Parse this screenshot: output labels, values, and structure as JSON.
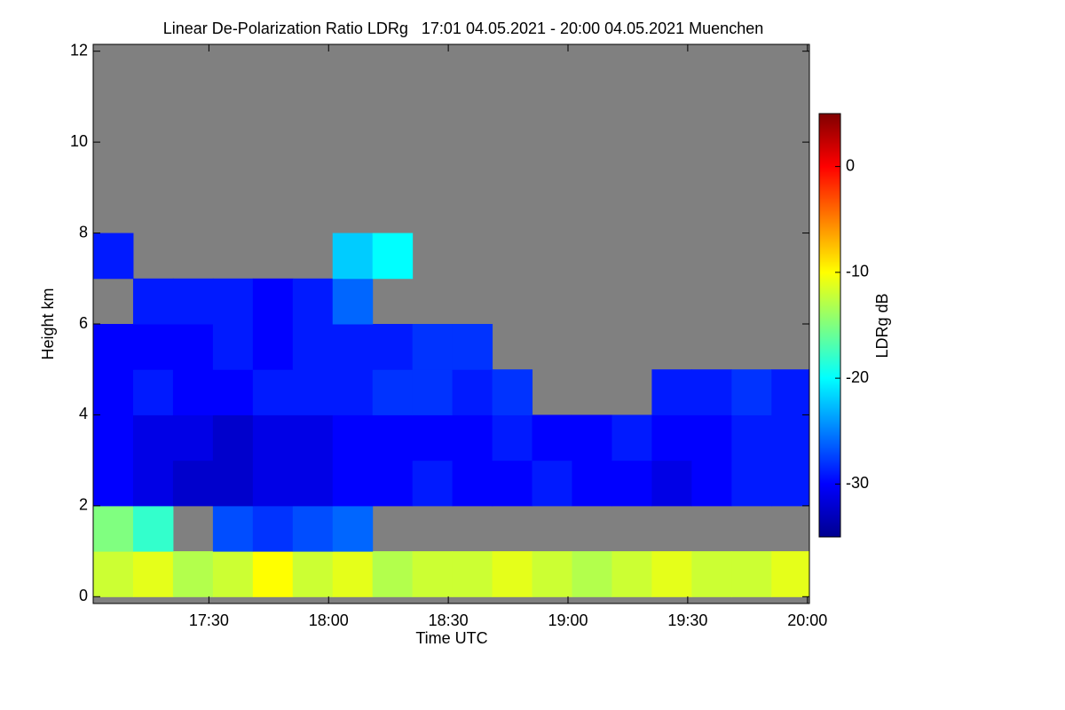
{
  "chart_data": {
    "type": "heatmap",
    "title": "Linear De-Polarization Ratio LDRg   17:01 04.05.2021 - 20:00 04.05.2021 Muenchen",
    "xlabel": "Time UTC",
    "ylabel": "Height km",
    "colorbar_label": "LDRg dB",
    "xlim": [
      1021,
      1200.5
    ],
    "xticks": [
      {
        "value": 1050,
        "label": "17:30"
      },
      {
        "value": 1080,
        "label": "18:00"
      },
      {
        "value": 1110,
        "label": "18:30"
      },
      {
        "value": 1140,
        "label": "19:00"
      },
      {
        "value": 1170,
        "label": "19:30"
      },
      {
        "value": 1200,
        "label": "20:00"
      }
    ],
    "ylim": [
      -0.15,
      12.15
    ],
    "yticks": [
      0,
      2,
      4,
      6,
      8,
      10,
      12
    ],
    "clim": [
      -35,
      5
    ],
    "cticks": [
      0,
      -10,
      -20,
      -30
    ],
    "colormap": "jet",
    "missing_color": "#808080",
    "xbins": [
      1021,
      1031,
      1041,
      1051,
      1061,
      1071,
      1081,
      1091,
      1101,
      1111,
      1121,
      1131,
      1141,
      1151,
      1161,
      1171,
      1181,
      1191,
      1200.5
    ],
    "ybins": [
      0,
      1,
      2,
      3,
      4,
      5,
      6,
      7,
      8,
      9,
      10,
      11,
      12
    ],
    "z": [
      [
        -12,
        -11,
        -13,
        -12,
        -10,
        -12,
        -11,
        -13,
        -12,
        -12,
        -11,
        -12,
        -13,
        -12,
        -11,
        -12,
        -12,
        -11
      ],
      [
        -15,
        -18,
        null,
        -27,
        -28,
        -27,
        -26,
        null,
        null,
        null,
        null,
        null,
        null,
        null,
        null,
        null,
        null,
        null
      ],
      [
        -30,
        -31,
        -32,
        -32,
        -31,
        -31,
        -30,
        -30,
        -29,
        -30,
        -30,
        -29,
        -30,
        -30,
        -31,
        -30,
        -29,
        -29
      ],
      [
        -30,
        -31,
        -31,
        -32,
        -31,
        -31,
        -30,
        -30,
        -30,
        -30,
        -29,
        -30,
        -30,
        -29,
        -30,
        -30,
        -29,
        -29
      ],
      [
        -30,
        -29,
        -30,
        -30,
        -29,
        -29,
        -29,
        -28,
        -28,
        -29,
        -28,
        null,
        null,
        null,
        -29,
        -29,
        -28,
        -29
      ],
      [
        -30,
        -30,
        -30,
        -29,
        -30,
        -29,
        -29,
        -29,
        -28,
        -28,
        null,
        null,
        null,
        null,
        null,
        null,
        null,
        null
      ],
      [
        null,
        -29,
        -29,
        -29,
        -30,
        -29,
        -26,
        null,
        null,
        null,
        null,
        null,
        null,
        null,
        null,
        null,
        null,
        null
      ],
      [
        -29,
        null,
        null,
        null,
        null,
        null,
        -22,
        -20,
        null,
        null,
        null,
        null,
        null,
        null,
        null,
        null,
        null,
        null
      ],
      [
        null,
        null,
        null,
        null,
        null,
        null,
        null,
        null,
        null,
        null,
        null,
        null,
        null,
        null,
        null,
        null,
        null,
        null
      ],
      [
        null,
        null,
        null,
        null,
        null,
        null,
        null,
        null,
        null,
        null,
        null,
        null,
        null,
        null,
        null,
        null,
        null,
        null
      ],
      [
        null,
        null,
        null,
        null,
        null,
        null,
        null,
        null,
        null,
        null,
        null,
        null,
        null,
        null,
        null,
        null,
        null,
        null
      ],
      [
        null,
        null,
        null,
        null,
        null,
        null,
        null,
        null,
        null,
        null,
        null,
        null,
        null,
        null,
        null,
        null,
        null,
        null
      ]
    ]
  }
}
